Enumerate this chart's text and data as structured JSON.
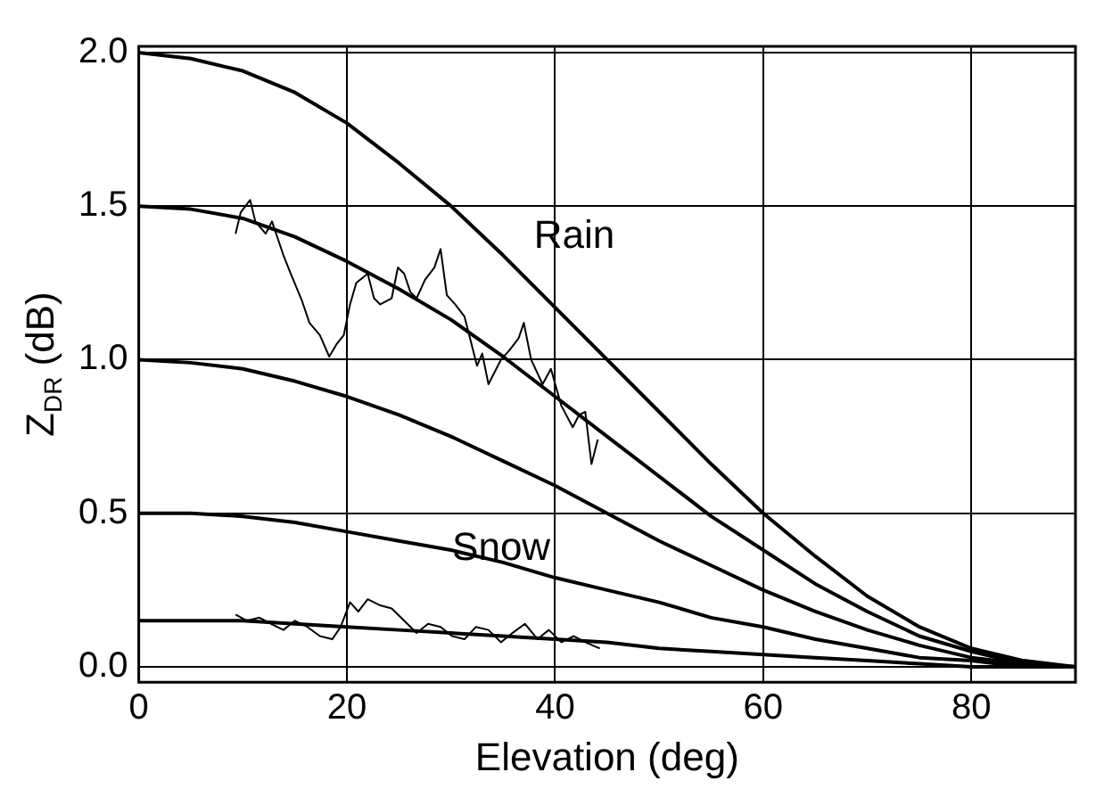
{
  "chart_data": {
    "type": "line",
    "xlabel": "Elevation (deg)",
    "ylabel": "Z$_{DR}$ (dB)",
    "xlim": [
      0,
      90
    ],
    "ylim": [
      -0.05,
      2.02
    ],
    "xticks": [
      0,
      20,
      40,
      60,
      80
    ],
    "yticks": [
      {
        "value": 0,
        "label": "0.0"
      },
      0.5,
      {
        "value": 1,
        "label": "1.0"
      },
      1.5,
      {
        "value": 2,
        "label": "2.0"
      }
    ],
    "grid": true,
    "legend": false,
    "marker": "none",
    "line_style": "solid",
    "annotations": [
      "Rain",
      "Snow"
    ],
    "series": [
      {
        "color": "#000000",
        "x": [
          0,
          5,
          10,
          15,
          20,
          25,
          30,
          35,
          40,
          45,
          50,
          55,
          60,
          65,
          70,
          75,
          80,
          85,
          90
        ],
        "values": [
          2,
          1.98,
          1.94,
          1.87,
          1.77,
          1.64,
          1.5,
          1.34,
          1.17,
          1,
          0.83,
          0.66,
          0.5,
          0.36,
          0.23,
          0.13,
          0.06,
          0.02,
          0
        ]
      },
      {
        "color": "#000000",
        "x": [
          0,
          5,
          10,
          15,
          20,
          25,
          30,
          35,
          40,
          45,
          50,
          55,
          60,
          65,
          70,
          75,
          80,
          85,
          90
        ],
        "values": [
          1.5,
          1.49,
          1.46,
          1.4,
          1.32,
          1.23,
          1.13,
          1.01,
          0.88,
          0.75,
          0.62,
          0.49,
          0.38,
          0.27,
          0.18,
          0.1,
          0.05,
          0.01,
          0
        ]
      },
      {
        "color": "#000000",
        "x": [
          0,
          5,
          10,
          15,
          20,
          25,
          30,
          35,
          40,
          45,
          50,
          55,
          60,
          65,
          70,
          75,
          80,
          85,
          90
        ],
        "values": [
          1,
          0.99,
          0.97,
          0.93,
          0.88,
          0.82,
          0.75,
          0.67,
          0.59,
          0.5,
          0.41,
          0.33,
          0.25,
          0.18,
          0.12,
          0.07,
          0.03,
          0.01,
          0
        ]
      },
      {
        "color": "#000000",
        "x": [
          0,
          5,
          10,
          15,
          20,
          25,
          30,
          35,
          40,
          45,
          50,
          55,
          60,
          65,
          70,
          75,
          80,
          85,
          90
        ],
        "values": [
          0.5,
          0.5,
          0.49,
          0.47,
          0.44,
          0.41,
          0.38,
          0.34,
          0.29,
          0.25,
          0.21,
          0.16,
          0.13,
          0.09,
          0.06,
          0.03,
          0.02,
          0,
          0
        ]
      },
      {
        "color": "#000000",
        "x": [
          0,
          5,
          10,
          15,
          20,
          25,
          30,
          35,
          40,
          45,
          50,
          55,
          60,
          65,
          70,
          75,
          80,
          85,
          90
        ],
        "values": [
          0.15,
          0.15,
          0.15,
          0.14,
          0.13,
          0.12,
          0.11,
          0.1,
          0.09,
          0.08,
          0.06,
          0.05,
          0.04,
          0.03,
          0.02,
          0.01,
          0,
          0,
          0
        ]
      },
      {
        "color": "#000000",
        "x": [
          9.3,
          9.8,
          10.7,
          11.2,
          12.2,
          12.8,
          13.9,
          14.6,
          15.7,
          16.4,
          17.4,
          18.3,
          19.0,
          19.7,
          20.3,
          20.9,
          22,
          22.6,
          23.2,
          24.3,
          24.9,
          25.5,
          26.1,
          26.7,
          27.5,
          28.4,
          29.0,
          29.6,
          30.4,
          31.3,
          32.5,
          33.0,
          33.6,
          34.8,
          35.6,
          36.5,
          37.0,
          37.7,
          38.8,
          39.6,
          40.6,
          41.7,
          42.3,
          42.9,
          43.5,
          44.1
        ],
        "values": [
          1.41,
          1.48,
          1.52,
          1.45,
          1.41,
          1.45,
          1.34,
          1.28,
          1.19,
          1.12,
          1.08,
          1.01,
          1.05,
          1.08,
          1.18,
          1.25,
          1.28,
          1.2,
          1.18,
          1.2,
          1.3,
          1.28,
          1.22,
          1.2,
          1.26,
          1.3,
          1.36,
          1.21,
          1.18,
          1.14,
          0.98,
          1.02,
          0.92,
          1.0,
          1.03,
          1.07,
          1.12,
          1.0,
          0.92,
          0.97,
          0.85,
          0.78,
          0.82,
          0.83,
          0.66,
          0.74
        ]
      },
      {
        "color": "#000000",
        "x": [
          9.3,
          10.4,
          11.6,
          12.7,
          13.9,
          15.0,
          16.2,
          17.4,
          18.6,
          19.4,
          20.3,
          21.1,
          22,
          23.2,
          24.3,
          25.5,
          26.7,
          27.8,
          29,
          30.1,
          31.3,
          32.4,
          33.6,
          34.8,
          35.9,
          37.1,
          38.3,
          39.4,
          40.6,
          41.8,
          42.9,
          44.3
        ],
        "values": [
          0.17,
          0.15,
          0.16,
          0.14,
          0.12,
          0.15,
          0.13,
          0.1,
          0.09,
          0.13,
          0.21,
          0.18,
          0.22,
          0.2,
          0.19,
          0.15,
          0.11,
          0.14,
          0.13,
          0.1,
          0.09,
          0.13,
          0.12,
          0.08,
          0.11,
          0.14,
          0.09,
          0.12,
          0.08,
          0.1,
          0.08,
          0.06
        ]
      }
    ]
  }
}
